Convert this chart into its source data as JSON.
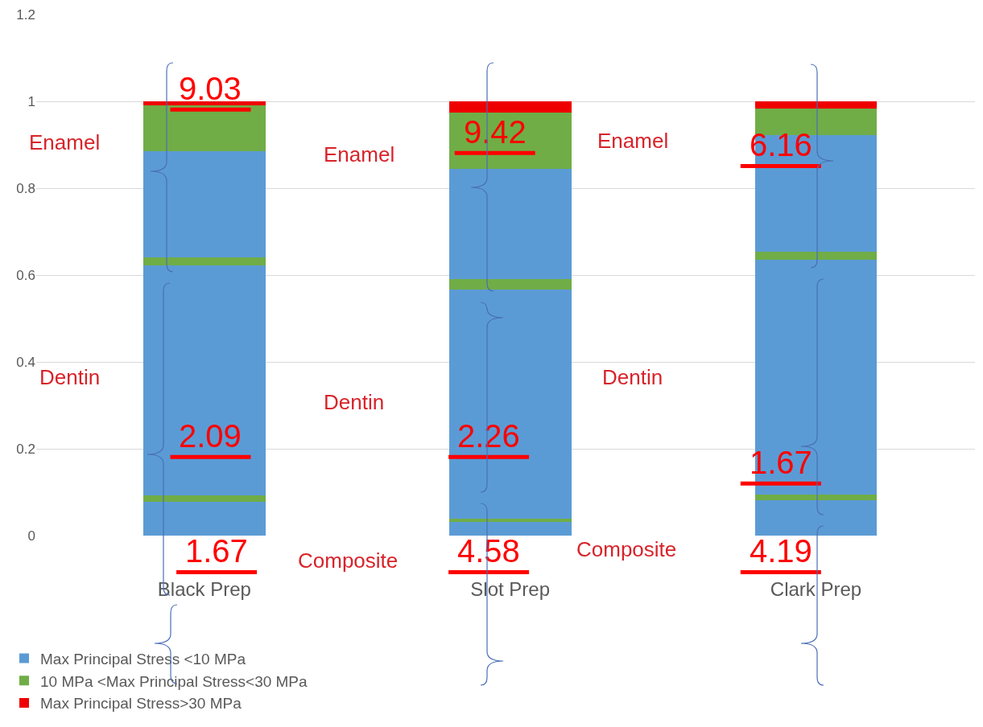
{
  "chart_data": {
    "type": "bar",
    "stacked": true,
    "categories": [
      "Black Prep",
      "Slot Prep",
      "Clark Prep"
    ],
    "series": [
      {
        "name": "Max Principal Stress <10 MPa",
        "color": "#5b9bd5",
        "values": [
          0.077,
          0.032,
          0.081
        ]
      },
      {
        "name": "10 MPa <Max Principal Stress<30 MPa",
        "color": "#70ad47",
        "values": [
          0.015,
          0.007,
          0.014
        ]
      },
      {
        "color": "#5b9bd5",
        "values": [
          0.53,
          0.527,
          0.541
        ]
      },
      {
        "color": "#70ad47",
        "values": [
          0.018,
          0.024,
          0.018
        ]
      },
      {
        "color": "#5b9bd5",
        "values": [
          0.246,
          0.254,
          0.269
        ]
      },
      {
        "color": "#70ad47",
        "values": [
          0.104,
          0.131,
          0.061
        ]
      },
      {
        "name": "Max Principal Stress>30 MPa",
        "color": "#ee0000",
        "values": [
          0.01,
          0.025,
          0.016
        ]
      }
    ],
    "ylim": [
      0,
      1.2
    ],
    "yticks": [
      0,
      0.2,
      0.4,
      0.6,
      0.8,
      1,
      1.2
    ],
    "grid": "y",
    "legend": "bottom left",
    "annotations": [
      "9.03",
      "2.09",
      "1.67",
      "9.42",
      "2.26",
      "4.58",
      "6.16",
      "1.67",
      "4.19",
      "Enamel",
      "Dentin",
      "Enamel",
      "Dentin",
      "Composite",
      "Enamel",
      "Dentin",
      "Composite"
    ]
  }
}
